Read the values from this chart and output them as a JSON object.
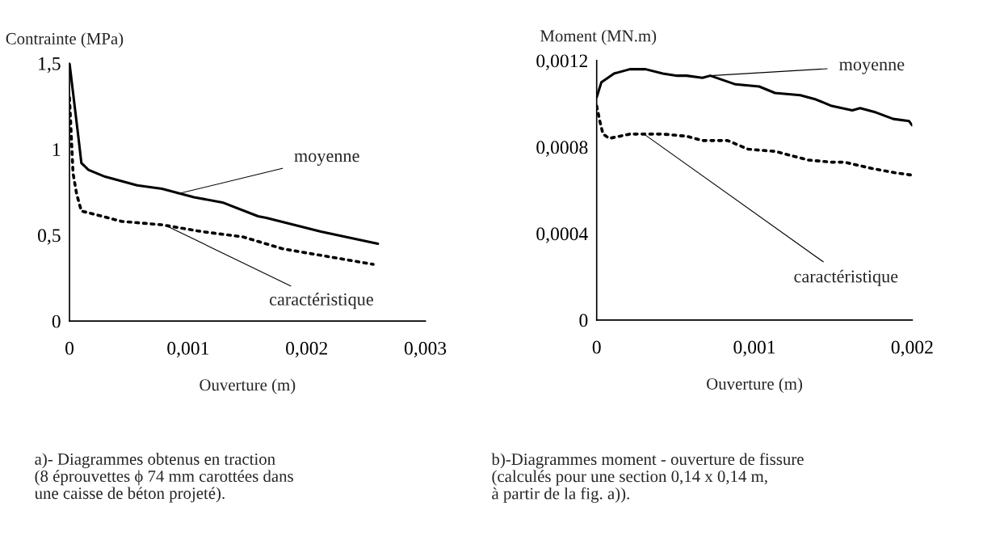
{
  "chart_data": [
    {
      "type": "line",
      "xlabel": "Ouverture (m)",
      "ylabel": "Contrainte (MPa)",
      "xlim": [
        0,
        0.003
      ],
      "ylim": [
        0,
        1.5
      ],
      "xticks": [
        {
          "value": 0,
          "label": "0"
        },
        {
          "value": 0.001,
          "label": "0,001"
        },
        {
          "value": 0.002,
          "label": "0,002"
        },
        {
          "value": 0.003,
          "label": "0,003"
        }
      ],
      "yticks": [
        {
          "value": 0,
          "label": "0"
        },
        {
          "value": 0.5,
          "label": "0,5"
        },
        {
          "value": 1,
          "label": "1"
        },
        {
          "value": 1.5,
          "label": "1,5"
        }
      ],
      "grid": false,
      "legend": false,
      "series": [
        {
          "color": "#000000",
          "line_style": "solid",
          "x": [
            0,
            7.5e-05,
            0.0001,
            0.00016,
            0.0003,
            0.00057,
            0.00078,
            0.00105,
            0.00129,
            0.00159,
            0.00166,
            0.00212,
            0.0026
          ],
          "values": [
            1.5,
            1.07,
            0.92,
            0.88,
            0.84,
            0.79,
            0.77,
            0.72,
            0.69,
            0.61,
            0.6,
            0.52,
            0.45
          ]
        },
        {
          "color": "#000000",
          "line_style": "dotted",
          "x": [
            0,
            3e-05,
            6e-05,
            0.0001,
            0.00016,
            0.00044,
            0.00078,
            0.00112,
            0.00146,
            0.0018,
            0.00214,
            0.00256
          ],
          "values": [
            1.3,
            0.86,
            0.74,
            0.64,
            0.63,
            0.58,
            0.56,
            0.52,
            0.49,
            0.42,
            0.38,
            0.33
          ]
        }
      ],
      "annotations": [
        {
          "text": "moyenne",
          "x": 0.00091,
          "y": 0.74
        },
        {
          "text": "caractéristique",
          "x": 0.00083,
          "y": 0.55
        },
        "a)- Diagrammes obtenus en traction\n(8 éprouvettes ϕ 74 mm carottées dans\nune caisse de béton projeté)."
      ]
    },
    {
      "type": "line",
      "xlabel": "Ouverture (m)",
      "ylabel": "Moment (MN.m)",
      "xlim": [
        0,
        0.002
      ],
      "ylim": [
        0,
        0.0012
      ],
      "xticks": [
        {
          "value": 0,
          "label": "0"
        },
        {
          "value": 0.001,
          "label": "0,001"
        },
        {
          "value": 0.002,
          "label": "0,002"
        }
      ],
      "yticks": [
        {
          "value": 0,
          "label": "0"
        },
        {
          "value": 0.0004,
          "label": "0,0004"
        },
        {
          "value": 0.0008,
          "label": "0,0008"
        },
        {
          "value": 0.0012,
          "label": "0,0012"
        }
      ],
      "grid": false,
      "legend": false,
      "series": [
        {
          "color": "#000000",
          "line_style": "solid",
          "x": [
            0,
            3e-05,
            0.00011,
            0.00021,
            0.00031,
            0.00042,
            0.00051,
            0.00057,
            0.00067,
            0.00072,
            0.00088,
            0.00103,
            0.00113,
            0.00129,
            0.00139,
            0.00149,
            0.00162,
            0.00167,
            0.00177,
            0.00188,
            0.00198,
            0.002
          ],
          "values": [
            0.00103,
            0.0011,
            0.00114,
            0.00116,
            0.00116,
            0.00114,
            0.00113,
            0.00113,
            0.00112,
            0.00113,
            0.00109,
            0.00108,
            0.00105,
            0.00104,
            0.00102,
            0.00099,
            0.00097,
            0.00098,
            0.00096,
            0.00093,
            0.00092,
            0.0009
          ]
        },
        {
          "color": "#000000",
          "line_style": "dotted",
          "x": [
            0,
            2e-05,
            4e-05,
            8e-05,
            0.00021,
            0.00031,
            0.00042,
            0.00057,
            0.00067,
            0.00083,
            0.00096,
            0.00113,
            0.00134,
            0.00149,
            0.00157,
            0.00175,
            0.0019,
            0.002
          ],
          "values": [
            0.00099,
            0.00092,
            0.00086,
            0.00084,
            0.00086,
            0.00086,
            0.00086,
            0.00085,
            0.00083,
            0.00083,
            0.00079,
            0.00078,
            0.00074,
            0.00073,
            0.00073,
            0.0007,
            0.00068,
            0.00067
          ]
        }
      ],
      "annotations": [
        {
          "text": "moyenne",
          "x": 0.00072,
          "y": 0.00113
        },
        {
          "text": "caractéristique",
          "x": 0.0003,
          "y": 0.00086
        },
        "b)-Diagrammes moment - ouverture de fissure\n(calculés pour une section 0,14 x 0,14 m,\nà partir de la fig. a))."
      ]
    }
  ]
}
